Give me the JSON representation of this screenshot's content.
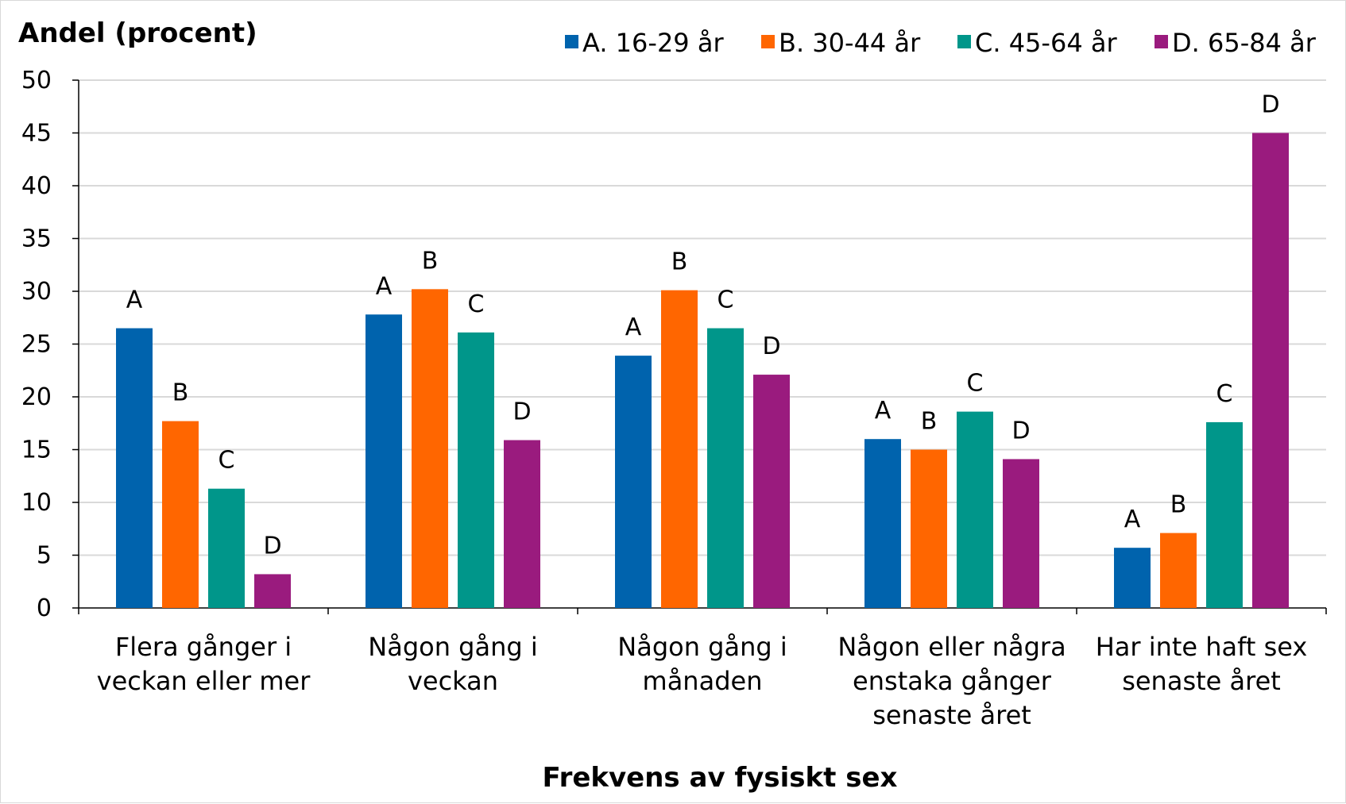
{
  "chart_data": {
    "type": "bar",
    "ylabel": "Andel (procent)",
    "xlabel": "Frekvens av fysiskt sex",
    "ylim": [
      0,
      50
    ],
    "yticks": [
      0,
      5,
      10,
      15,
      20,
      25,
      30,
      35,
      40,
      45,
      50
    ],
    "grid": true,
    "legend_position": "top-right",
    "categories": [
      [
        "Flera gånger i",
        "veckan eller mer"
      ],
      [
        "Någon gång i",
        "veckan"
      ],
      [
        "Någon gång i",
        "månaden"
      ],
      [
        "Någon eller några",
        "enstaka gånger",
        "senaste året"
      ],
      [
        "Har inte haft sex",
        "senaste året"
      ]
    ],
    "series": [
      {
        "name": "A. 16-29 år",
        "label": "A",
        "color": "#0063ad",
        "values": [
          26.5,
          27.8,
          23.9,
          16.0,
          5.7
        ]
      },
      {
        "name": "B. 30-44 år",
        "label": "B",
        "color": "#ff6600",
        "values": [
          17.7,
          30.2,
          30.1,
          15.0,
          7.1
        ]
      },
      {
        "name": "C. 45-64 år",
        "label": "C",
        "color": "#00968a",
        "values": [
          11.3,
          26.1,
          26.5,
          18.6,
          17.6
        ]
      },
      {
        "name": "D. 65-84 år",
        "label": "D",
        "color": "#9a1b7e",
        "values": [
          3.2,
          15.9,
          22.1,
          14.1,
          45.0
        ]
      }
    ]
  }
}
